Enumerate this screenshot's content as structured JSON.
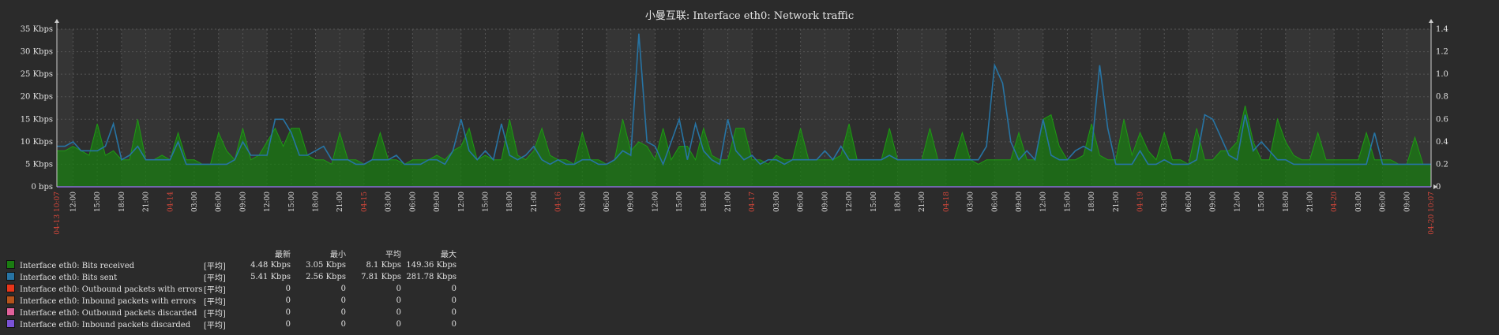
{
  "title": "小曼互联: Interface eth0: Network traffic",
  "colors": {
    "background": "#2b2b2b",
    "plot_background": "#353535",
    "plot_band": "#2e2e2e",
    "grid": "#555555",
    "axis_text": "#e0e0e0",
    "date_text": "#d8483b",
    "series_received": "#1a7c11",
    "series_sent": "#2774a4",
    "baseline": "#8a6cd8"
  },
  "legend": {
    "columns": [
      "最新",
      "最小",
      "平均",
      "最大"
    ],
    "function_label": "[平均]",
    "items": [
      {
        "name": "Interface eth0: Bits received",
        "color": "#1a7c11",
        "last": "4.48 Kbps",
        "min": "3.05 Kbps",
        "avg": "8.1 Kbps",
        "max": "149.36 Kbps"
      },
      {
        "name": "Interface eth0: Bits sent",
        "color": "#2774a4",
        "last": "5.41 Kbps",
        "min": "2.56 Kbps",
        "avg": "7.81 Kbps",
        "max": "281.78 Kbps"
      },
      {
        "name": "Interface eth0: Outbound packets with errors",
        "color": "#e8361a",
        "last": "0",
        "min": "0",
        "avg": "0",
        "max": "0"
      },
      {
        "name": "Interface eth0: Inbound packets with errors",
        "color": "#b5541c",
        "last": "0",
        "min": "0",
        "avg": "0",
        "max": "0"
      },
      {
        "name": "Interface eth0: Outbound packets discarded",
        "color": "#e0619a",
        "last": "0",
        "min": "0",
        "avg": "0",
        "max": "0"
      },
      {
        "name": "Interface eth0: Inbound packets discarded",
        "color": "#7a52d6",
        "last": "0",
        "min": "0",
        "avg": "0",
        "max": "0"
      }
    ]
  },
  "chart_data": {
    "type": "line",
    "title": "小曼互联: Interface eth0: Network traffic",
    "y_left": {
      "ticks": [
        "0 bps",
        "5 Kbps",
        "10 Kbps",
        "15 Kbps",
        "20 Kbps",
        "25 Kbps",
        "30 Kbps",
        "35 Kbps"
      ],
      "range": [
        0,
        35
      ],
      "unit": "Kbps"
    },
    "y_right": {
      "ticks": [
        "0",
        "0.2",
        "0.4",
        "0.6",
        "0.8",
        "1.0",
        "1.2",
        "1.4"
      ],
      "range": [
        0,
        1.4
      ]
    },
    "x_range_hours": [
      0,
      170
    ],
    "x_ticks": [
      {
        "h": 0,
        "label": "04-13 10:07",
        "date": true
      },
      {
        "h": 2,
        "label": "12:00"
      },
      {
        "h": 5,
        "label": "15:00"
      },
      {
        "h": 8,
        "label": "18:00"
      },
      {
        "h": 11,
        "label": "21:00"
      },
      {
        "h": 14,
        "label": "04-14",
        "date": true
      },
      {
        "h": 17,
        "label": "03:00"
      },
      {
        "h": 20,
        "label": "06:00"
      },
      {
        "h": 23,
        "label": "09:00"
      },
      {
        "h": 26,
        "label": "12:00"
      },
      {
        "h": 29,
        "label": "15:00"
      },
      {
        "h": 32,
        "label": "18:00"
      },
      {
        "h": 35,
        "label": "21:00"
      },
      {
        "h": 38,
        "label": "04-15",
        "date": true
      },
      {
        "h": 41,
        "label": "03:00"
      },
      {
        "h": 44,
        "label": "06:00"
      },
      {
        "h": 47,
        "label": "09:00"
      },
      {
        "h": 50,
        "label": "12:00"
      },
      {
        "h": 53,
        "label": "15:00"
      },
      {
        "h": 56,
        "label": "18:00"
      },
      {
        "h": 59,
        "label": "21:00"
      },
      {
        "h": 62,
        "label": "04-16",
        "date": true
      },
      {
        "h": 65,
        "label": "03:00"
      },
      {
        "h": 68,
        "label": "06:00"
      },
      {
        "h": 71,
        "label": "09:00"
      },
      {
        "h": 74,
        "label": "12:00"
      },
      {
        "h": 77,
        "label": "15:00"
      },
      {
        "h": 80,
        "label": "18:00"
      },
      {
        "h": 83,
        "label": "21:00"
      },
      {
        "h": 86,
        "label": "04-17",
        "date": true
      },
      {
        "h": 89,
        "label": "03:00"
      },
      {
        "h": 92,
        "label": "06:00"
      },
      {
        "h": 95,
        "label": "09:00"
      },
      {
        "h": 98,
        "label": "12:00"
      },
      {
        "h": 101,
        "label": "15:00"
      },
      {
        "h": 104,
        "label": "18:00"
      },
      {
        "h": 107,
        "label": "21:00"
      },
      {
        "h": 110,
        "label": "04-18",
        "date": true
      },
      {
        "h": 113,
        "label": "03:00"
      },
      {
        "h": 116,
        "label": "06:00"
      },
      {
        "h": 119,
        "label": "09:00"
      },
      {
        "h": 122,
        "label": "12:00"
      },
      {
        "h": 125,
        "label": "15:00"
      },
      {
        "h": 128,
        "label": "18:00"
      },
      {
        "h": 131,
        "label": "21:00"
      },
      {
        "h": 134,
        "label": "04-19",
        "date": true
      },
      {
        "h": 137,
        "label": "03:00"
      },
      {
        "h": 140,
        "label": "06:00"
      },
      {
        "h": 143,
        "label": "09:00"
      },
      {
        "h": 146,
        "label": "12:00"
      },
      {
        "h": 149,
        "label": "15:00"
      },
      {
        "h": 152,
        "label": "18:00"
      },
      {
        "h": 155,
        "label": "21:00"
      },
      {
        "h": 158,
        "label": "04-20",
        "date": true
      },
      {
        "h": 161,
        "label": "03:00"
      },
      {
        "h": 164,
        "label": "06:00"
      },
      {
        "h": 167,
        "label": "09:00"
      },
      {
        "h": 170,
        "label": "04-20 10:07",
        "date": true
      }
    ],
    "band_ranges_hours": [
      [
        2,
        8
      ],
      [
        14,
        20
      ],
      [
        26,
        32
      ],
      [
        38,
        44
      ],
      [
        50,
        56
      ],
      [
        62,
        68
      ],
      [
        74,
        80
      ],
      [
        86,
        92
      ],
      [
        98,
        104
      ],
      [
        110,
        116
      ],
      [
        122,
        128
      ],
      [
        134,
        140
      ],
      [
        146,
        152
      ],
      [
        158,
        164
      ]
    ],
    "series": [
      {
        "name": "Interface eth0: Bits received",
        "style": "area",
        "x": [
          0,
          1,
          2,
          3,
          4,
          5,
          6,
          7,
          8,
          9,
          10,
          11,
          12,
          13,
          14,
          15,
          16,
          17,
          18,
          19,
          20,
          21,
          22,
          23,
          24,
          25,
          26,
          27,
          28,
          29,
          30,
          31,
          32,
          33,
          34,
          35,
          36,
          37,
          38,
          39,
          40,
          41,
          42,
          43,
          44,
          45,
          46,
          47,
          48,
          49,
          50,
          51,
          52,
          53,
          54,
          55,
          56,
          57,
          58,
          59,
          60,
          61,
          62,
          63,
          64,
          65,
          66,
          67,
          68,
          69,
          70,
          71,
          72,
          73,
          74,
          75,
          76,
          77,
          78,
          79,
          80,
          81,
          82,
          83,
          84,
          85,
          86,
          87,
          88,
          89,
          90,
          91,
          92,
          93,
          94,
          95,
          96,
          97,
          98,
          99,
          100,
          101,
          102,
          103,
          104,
          105,
          106,
          107,
          108,
          109,
          110,
          111,
          112,
          113,
          114,
          115,
          116,
          117,
          118,
          119,
          120,
          121,
          122,
          123,
          124,
          125,
          126,
          127,
          128,
          129,
          130,
          131,
          132,
          133,
          134,
          135,
          136,
          137,
          138,
          139,
          140,
          141,
          142,
          143,
          144,
          145,
          146,
          147,
          148,
          149,
          150,
          151,
          152,
          153,
          154,
          155,
          156,
          157,
          158,
          159,
          160,
          161,
          162,
          163,
          164,
          165,
          166,
          167,
          168,
          169,
          170
        ],
        "values": [
          8,
          8,
          9,
          8,
          7,
          14,
          7,
          8,
          6,
          6,
          15,
          6,
          6,
          7,
          6,
          12,
          6,
          6,
          5,
          5,
          12,
          8,
          6,
          13,
          6,
          7,
          10,
          13,
          9,
          13,
          13,
          7,
          6,
          6,
          5,
          12,
          6,
          6,
          5,
          6,
          12,
          6,
          6,
          5,
          6,
          6,
          6,
          7,
          6,
          8,
          9,
          13,
          6,
          7,
          6,
          6,
          15,
          7,
          6,
          8,
          13,
          7,
          6,
          6,
          5,
          12,
          6,
          6,
          5,
          6,
          15,
          8,
          10,
          9,
          6,
          13,
          6,
          9,
          9,
          6,
          13,
          7,
          6,
          6,
          13,
          13,
          6,
          6,
          5,
          7,
          6,
          6,
          13,
          6,
          6,
          6,
          6,
          7,
          14,
          6,
          6,
          6,
          6,
          13,
          6,
          6,
          6,
          6,
          13,
          6,
          6,
          6,
          12,
          6,
          5,
          6,
          6,
          6,
          6,
          12,
          6,
          6,
          15,
          16,
          9,
          6,
          6,
          7,
          14,
          7,
          6,
          6,
          15,
          7,
          12,
          8,
          6,
          12,
          6,
          6,
          5,
          13,
          6,
          6,
          8,
          8,
          10,
          18,
          10,
          6,
          6,
          15,
          10,
          7,
          6,
          6,
          12,
          6,
          6,
          6,
          6,
          6,
          12,
          6,
          6,
          6,
          5,
          5,
          11,
          5,
          5
        ]
      },
      {
        "name": "Interface eth0: Bits sent",
        "style": "line",
        "x": [
          0,
          1,
          2,
          3,
          4,
          5,
          6,
          7,
          8,
          9,
          10,
          11,
          12,
          13,
          14,
          15,
          16,
          17,
          18,
          19,
          20,
          21,
          22,
          23,
          24,
          25,
          26,
          27,
          28,
          29,
          30,
          31,
          32,
          33,
          34,
          35,
          36,
          37,
          38,
          39,
          40,
          41,
          42,
          43,
          44,
          45,
          46,
          47,
          48,
          49,
          50,
          51,
          52,
          53,
          54,
          55,
          56,
          57,
          58,
          59,
          60,
          61,
          62,
          63,
          64,
          65,
          66,
          67,
          68,
          69,
          70,
          71,
          72,
          73,
          74,
          75,
          76,
          77,
          78,
          79,
          80,
          81,
          82,
          83,
          84,
          85,
          86,
          87,
          88,
          89,
          90,
          91,
          92,
          93,
          94,
          95,
          96,
          97,
          98,
          99,
          100,
          101,
          102,
          103,
          104,
          105,
          106,
          107,
          108,
          109,
          110,
          111,
          112,
          113,
          114,
          115,
          116,
          117,
          118,
          119,
          120,
          121,
          122,
          123,
          124,
          125,
          126,
          127,
          128,
          129,
          130,
          131,
          132,
          133,
          134,
          135,
          136,
          137,
          138,
          139,
          140,
          141,
          142,
          143,
          144,
          145,
          146,
          147,
          148,
          149,
          150,
          151,
          152,
          153,
          154,
          155,
          156,
          157,
          158,
          159,
          160,
          161,
          162,
          163,
          164,
          165,
          166,
          167,
          168,
          169,
          170
        ],
        "values": [
          9,
          9,
          10,
          8,
          8,
          8,
          9,
          14,
          6,
          7,
          9,
          6,
          6,
          6,
          6,
          10,
          5,
          5,
          5,
          5,
          5,
          5,
          6,
          10,
          7,
          7,
          7,
          15,
          15,
          12,
          7,
          7,
          8,
          9,
          6,
          6,
          6,
          5,
          5,
          6,
          6,
          6,
          7,
          5,
          5,
          5,
          6,
          6,
          5,
          8,
          15,
          8,
          6,
          8,
          6,
          14,
          7,
          6,
          7,
          9,
          6,
          5,
          6,
          5,
          5,
          6,
          6,
          5,
          5,
          6,
          8,
          7,
          34,
          10,
          9,
          5,
          10,
          15,
          6,
          14,
          8,
          6,
          5,
          15,
          8,
          6,
          7,
          5,
          6,
          6,
          5,
          6,
          6,
          6,
          6,
          8,
          6,
          9,
          6,
          6,
          6,
          6,
          6,
          7,
          6,
          6,
          6,
          6,
          6,
          6,
          6,
          6,
          6,
          6,
          6,
          9,
          27,
          23,
          10,
          6,
          8,
          6,
          15,
          7,
          6,
          6,
          8,
          9,
          8,
          27,
          13,
          5,
          5,
          5,
          8,
          5,
          5,
          6,
          5,
          5,
          5,
          6,
          16,
          15,
          11,
          7,
          6,
          16,
          8,
          10,
          8,
          6,
          6,
          5,
          5,
          5,
          5,
          5,
          5,
          5,
          5,
          5,
          5,
          12,
          5,
          5,
          5,
          5,
          5,
          5,
          5
        ]
      }
    ]
  }
}
